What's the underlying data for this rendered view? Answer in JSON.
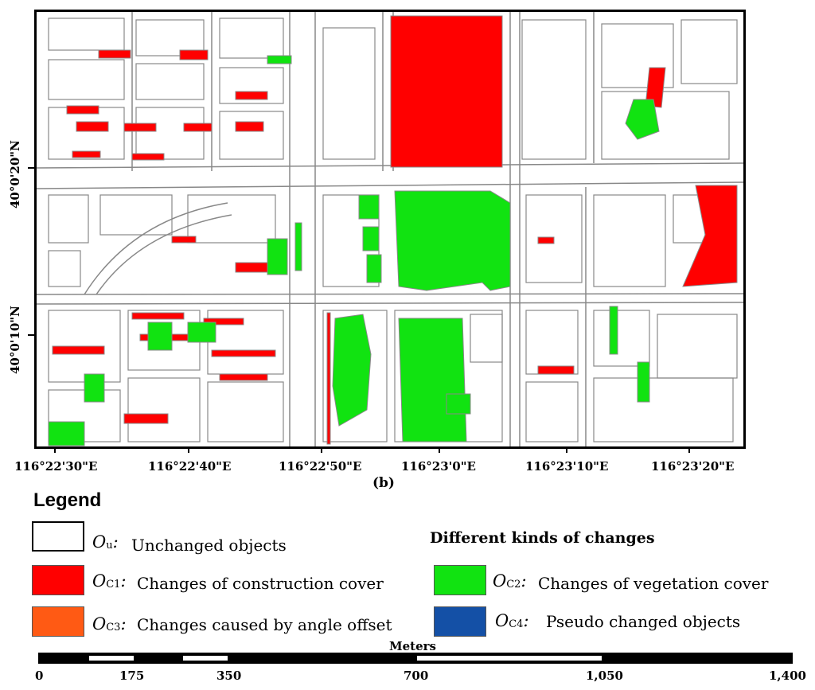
{
  "map": {
    "latitude_labels": [
      "40°0'20\"N",
      "40°0'10\"N"
    ],
    "longitude_labels": [
      "116°22'30\"E",
      "116°22'40\"E",
      "116°22'50\"E",
      "116°23'0\"E",
      "116°23'10\"E",
      "116°23'20\"E"
    ],
    "panel_label": "(b)"
  },
  "legend": {
    "title": "Legend",
    "kinds_heading": "Different kinds of changes",
    "items": [
      {
        "symbol": "O",
        "subscript": "u",
        "description": "Unchanged objects",
        "color": "#ffffff"
      },
      {
        "symbol": "O",
        "subscript": "C1",
        "description": "Changes of construction cover",
        "color": "#ff0000"
      },
      {
        "symbol": "O",
        "subscript": "C3",
        "description": "Changes caused by angle offset",
        "color": "#ff5a14"
      },
      {
        "symbol": "O",
        "subscript": "C2",
        "description": "Changes of vegetation cover",
        "color": "#11e311"
      },
      {
        "symbol": "O",
        "subscript": "C4",
        "description": "Pseudo changed objects",
        "color": "#1450a6"
      }
    ]
  },
  "scale_bar": {
    "unit": "Meters",
    "labels": [
      "0",
      "175",
      "350",
      "700",
      "1,050",
      "1,400"
    ]
  },
  "colors": {
    "outline": "#888888",
    "construction": "#ff0000",
    "vegetation": "#11e311"
  }
}
